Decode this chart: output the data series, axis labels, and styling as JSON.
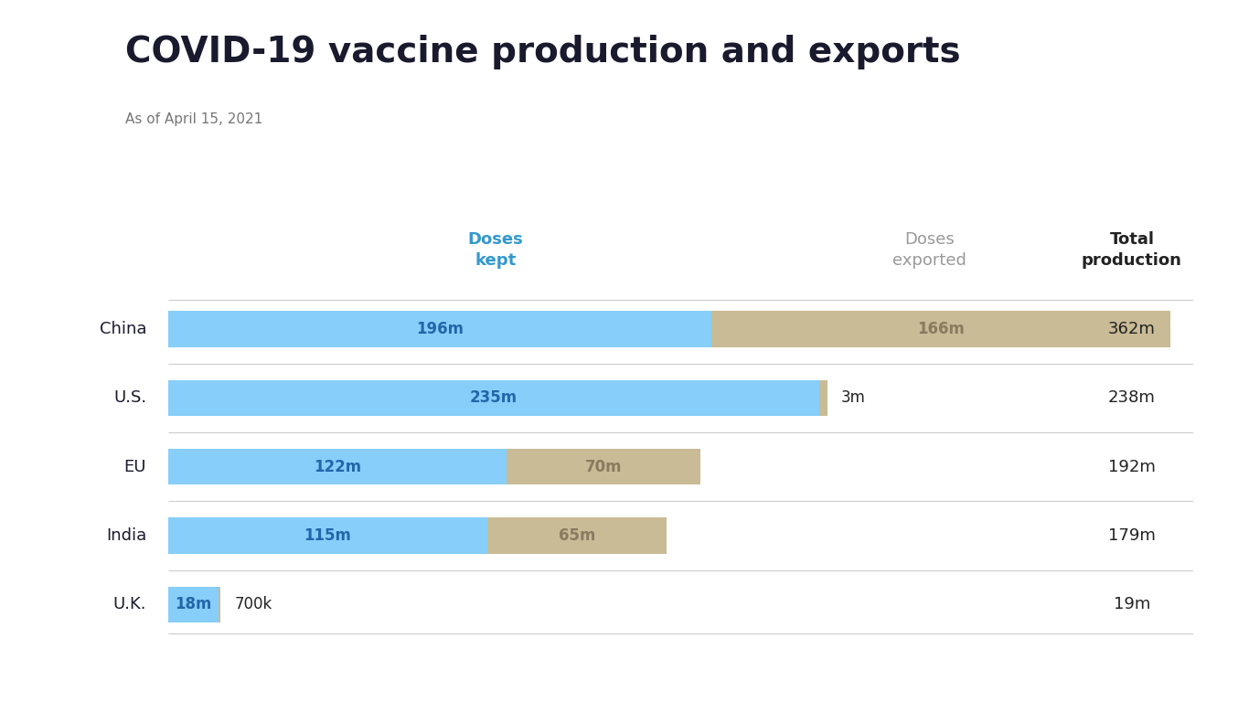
{
  "title": "COVID-19 vaccine production and exports",
  "subtitle": "As of April 15, 2021",
  "countries": [
    "China",
    "U.S.",
    "EU",
    "India",
    "U.K."
  ],
  "doses_kept": [
    196,
    235,
    122,
    115,
    18
  ],
  "doses_exported": [
    166,
    3,
    70,
    65,
    0.7
  ],
  "total_production": [
    "362m",
    "238m",
    "192m",
    "179m",
    "19m"
  ],
  "kept_labels": [
    "196m",
    "235m",
    "122m",
    "115m",
    "18m"
  ],
  "exported_labels": [
    "166m",
    "3m",
    "70m",
    "65m",
    "700k"
  ],
  "color_kept": "#87CEFA",
  "color_exported": "#C8BB96",
  "color_title": "#1a1a2e",
  "color_subtitle": "#777777",
  "color_kept_header": "#3399CC",
  "color_exported_header": "#999999",
  "color_kept_label": "#2266aa",
  "color_exported_label": "#8a7a60",
  "color_total": "#222222",
  "color_divider": "#cccccc",
  "background_color": "#ffffff",
  "bar_height": 0.52,
  "scale_max": 362
}
